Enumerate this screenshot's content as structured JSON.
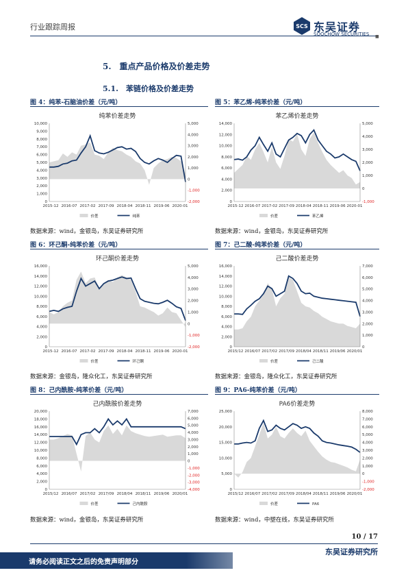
{
  "header": {
    "category": "行业跟踪周报",
    "logo_cn": "东吴证券",
    "logo_en": "SOOCHOW SECURITIES",
    "logo_mark": "SCS"
  },
  "section_title": "5.　重点产品价格及价差走势",
  "subsection_title": "5.1.　苯链价格及价差走势",
  "colors": {
    "navy": "#1a3a6b",
    "spread_fill": "#d9d9d9",
    "neg_axis": "#e02020"
  },
  "figures": [
    {
      "caption": "图 4：纯苯-石脑油价差（元/吨）",
      "source": "数据来源：wind，金银岛，东吴证券研究所",
      "chart_data": {
        "type": "area+line",
        "title": "纯苯价差走势",
        "legend": [
          "价差",
          "纯苯"
        ],
        "x_ticks": [
          "2015-12",
          "2016-07",
          "2017-02",
          "2017-09",
          "2018-04",
          "2018-11",
          "2019-06",
          "2020-01"
        ],
        "left_axis": {
          "min": 0,
          "max": 10000,
          "ticks": [
            "0",
            "1,000",
            "2,000",
            "3,000",
            "4,000",
            "5,000",
            "6,000",
            "7,000",
            "8,000",
            "9,000",
            "10,000"
          ]
        },
        "right_axis": {
          "min": -2000,
          "max": 5000,
          "ticks": [
            "-2,000",
            "-1,000",
            "0",
            "1,000",
            "2,000",
            "3,000",
            "4,000",
            "5,000"
          ]
        },
        "line": [
          4400,
          4400,
          4500,
          4800,
          4900,
          5200,
          5300,
          6200,
          7000,
          8400,
          6500,
          6200,
          6100,
          6300,
          6600,
          6900,
          7000,
          6700,
          6800,
          6400,
          5500,
          5000,
          4800,
          5200,
          5500,
          5300,
          5000,
          5500,
          5900,
          5800,
          2500
        ],
        "spread": [
          1500,
          1600,
          1700,
          2300,
          2000,
          2400,
          2200,
          3000,
          3100,
          3300,
          2200,
          2100,
          1800,
          2400,
          2800,
          2600,
          2500,
          2200,
          2000,
          1600,
          1400,
          800,
          -500,
          1000,
          1400,
          1700,
          1800,
          2000,
          1900,
          1600,
          500
        ]
      }
    },
    {
      "caption": "图 5：苯乙烯-纯苯价差（元/吨）",
      "source": "数据来源：wind，金银岛，东吴证券研究所",
      "chart_data": {
        "type": "area+line",
        "title": "苯乙烯价差走势",
        "legend": [
          "价差",
          "苯乙烯"
        ],
        "x_ticks": [
          "2015-12",
          "2016-07",
          "2017-02",
          "2017-09",
          "2018-04",
          "2018-11",
          "2019-06",
          "2020-01"
        ],
        "left_axis": {
          "min": 0,
          "max": 14000,
          "ticks": [
            "0",
            "2,000",
            "4,000",
            "6,000",
            "8,000",
            "10,000",
            "12,000",
            "14,000"
          ]
        },
        "right_axis": {
          "min": -1000,
          "max": 5000,
          "ticks": [
            "-1,000",
            "0",
            "1,000",
            "2,000",
            "3,000",
            "4,000",
            "5,000"
          ]
        },
        "line": [
          7500,
          7600,
          7400,
          8000,
          9200,
          10000,
          11500,
          10200,
          9000,
          10500,
          8500,
          8000,
          9500,
          11000,
          11500,
          12200,
          11800,
          10500,
          12000,
          12800,
          11000,
          10000,
          9000,
          8500,
          7800,
          8000,
          8500,
          8000,
          7500,
          7200,
          5500
        ],
        "spread": [
          1200,
          1500,
          1800,
          2500,
          2200,
          3000,
          3500,
          2800,
          2000,
          3200,
          2000,
          1500,
          2500,
          3800,
          3600,
          4200,
          3000,
          2500,
          3800,
          4300,
          3500,
          2800,
          2200,
          1800,
          1500,
          1200,
          1400,
          1000,
          800,
          300,
          500
        ]
      }
    },
    {
      "caption": "图 6：环己酮-纯苯价差（元/吨）",
      "source": "数据来源：金银岛，隆众化工，东吴证券研究所",
      "chart_data": {
        "type": "area+line",
        "title": "环己酮价差走势",
        "legend": [
          "价差",
          "环己酮"
        ],
        "x_ticks": [
          "2015-12",
          "2016-07",
          "2017-02",
          "2017-09",
          "2018-04",
          "2018-11",
          "2019-06",
          "2020-01"
        ],
        "left_axis": {
          "min": 0,
          "max": 16000,
          "ticks": [
            "0",
            "2,000",
            "4,000",
            "6,000",
            "8,000",
            "10,000",
            "12,000",
            "14,000",
            "16,000"
          ]
        },
        "right_axis": {
          "min": -2000,
          "max": 5000,
          "ticks": [
            "-2,000",
            "-1,000",
            "0",
            "1,000",
            "2,000",
            "3,000",
            "4,000",
            "5,000"
          ]
        },
        "line": [
          7000,
          7200,
          7000,
          7500,
          7800,
          8000,
          11000,
          13500,
          12000,
          12500,
          13000,
          11500,
          12500,
          13000,
          13200,
          13500,
          13800,
          13500,
          13600,
          11500,
          9500,
          9000,
          8800,
          8600,
          8500,
          8800,
          9200,
          8600,
          7900,
          7600,
          5200
        ],
        "spread": [
          1000,
          800,
          1000,
          1500,
          1800,
          2000,
          3800,
          4500,
          3500,
          3900,
          4000,
          3000,
          3500,
          3800,
          3600,
          4000,
          4200,
          4000,
          3800,
          2800,
          1500,
          1400,
          1200,
          1000,
          700,
          900,
          1400,
          1000,
          900,
          300,
          -300
        ]
      }
    },
    {
      "caption": "图 7：己二酸-纯苯价差（元/吨）",
      "source": "数据来源：金银岛，隆众化工，东吴证券研究所",
      "chart_data": {
        "type": "area+line",
        "title": "己二酸价差走势",
        "legend": [
          "价差",
          "己二酸"
        ],
        "x_ticks": [
          "2015/12",
          "2016/07",
          "2017/02",
          "2017/09",
          "2018/04",
          "2018/11",
          "2019/06",
          "2020/01"
        ],
        "left_axis": {
          "min": 0,
          "max": 16000,
          "ticks": [
            "0",
            "2,000",
            "4,000",
            "6,000",
            "8,000",
            "10,000",
            "12,000",
            "14,000",
            "16,000"
          ]
        },
        "right_axis": {
          "min": 0,
          "max": 7000,
          "ticks": [
            "0",
            "1,000",
            "2,000",
            "3,000",
            "4,000",
            "5,000",
            "6,000",
            "7,000"
          ]
        },
        "line": [
          6500,
          6500,
          6400,
          7500,
          8200,
          9000,
          9500,
          10500,
          12000,
          11500,
          10000,
          10500,
          11000,
          14000,
          13500,
          12500,
          11000,
          10500,
          10600,
          10000,
          9800,
          9600,
          9500,
          9400,
          9300,
          9200,
          9100,
          9000,
          8900,
          8800,
          6000
        ],
        "spread": [
          1500,
          1500,
          1600,
          2200,
          2600,
          3500,
          4000,
          4500,
          5500,
          5000,
          3500,
          4200,
          4600,
          6000,
          5800,
          4800,
          3800,
          3500,
          3400,
          3100,
          2900,
          2600,
          2400,
          2200,
          2100,
          2000,
          2000,
          1800,
          1700,
          1600,
          2000
        ]
      }
    },
    {
      "caption": "图 8：己内酰胺-纯苯价差（元/吨）",
      "source": "数据来源：wind，金银岛，东吴证券研究所",
      "chart_data": {
        "type": "area+line",
        "title": "己内酰胺价差走势",
        "legend": [
          "价差",
          "己内酰胺"
        ],
        "x_ticks": [
          "2015/12",
          "2016/07",
          "2017/02",
          "2017/09",
          "2018/04",
          "2018/11",
          "2019/06",
          "2020/01"
        ],
        "left_axis": {
          "min": 0,
          "max": 20000,
          "ticks": [
            "0",
            "2,000",
            "4,000",
            "6,000",
            "8,000",
            "10,000",
            "12,000",
            "14,000",
            "16,000",
            "18,000",
            "20,000"
          ]
        },
        "right_axis": {
          "min": -4000,
          "max": 7000,
          "ticks": [
            "-4,000",
            "-3,000",
            "-2,000",
            "-1,000",
            "0",
            "1,000",
            "2,000",
            "3,000",
            "4,000",
            "5,000",
            "6,000",
            "7,000"
          ]
        },
        "line": [
          13500,
          13500,
          13500,
          13500,
          13500,
          13500,
          11500,
          14000,
          14500,
          14500,
          15500,
          14500,
          16000,
          18000,
          16500,
          17500,
          16500,
          18000,
          16000,
          16000,
          16000,
          16000,
          16000,
          16000,
          16000,
          16000,
          16000,
          16000,
          16000,
          16000,
          15500
        ],
        "spread": [
          3000,
          3000,
          3200,
          3500,
          3800,
          3600,
          1000,
          -1500,
          3500,
          4000,
          3000,
          2600,
          4200,
          5000,
          3800,
          4500,
          3600,
          5000,
          4200,
          3900,
          3700,
          3500,
          3400,
          3500,
          3600,
          3700,
          3400,
          3500,
          3600,
          3600,
          3200
        ]
      }
    },
    {
      "caption": "图 9：PA6-纯苯价差（元/吨）",
      "source": "数据来源：wind，中塑在线，东吴证券研究所",
      "chart_data": {
        "type": "area+line",
        "title": "PA6价差走势",
        "legend": [
          "价差",
          "PA6"
        ],
        "x_ticks": [
          "2015/12",
          "2016/07",
          "2017/02",
          "2017/09",
          "2018/04",
          "2018/11",
          "2019/06",
          "2020/01"
        ],
        "left_axis": {
          "min": 0,
          "max": 25000,
          "ticks": [
            "0",
            "5,000",
            "10,000",
            "15,000",
            "20,000",
            "25,000"
          ]
        },
        "right_axis": {
          "min": -2000,
          "max": 8000,
          "ticks": [
            "-2,000",
            "-1,000",
            "0",
            "1,000",
            "2,000",
            "3,000",
            "4,000",
            "5,000",
            "6,000",
            "7,000",
            "8,000"
          ]
        },
        "line": [
          14500,
          14500,
          14800,
          15000,
          14800,
          15500,
          19500,
          22000,
          18500,
          19000,
          20500,
          19500,
          19000,
          20000,
          21000,
          20500,
          19500,
          20000,
          19500,
          18000,
          17000,
          15500,
          15000,
          14800,
          14500,
          14200,
          14000,
          13800,
          13500,
          12800,
          11800
        ],
        "spread": [
          0,
          -500,
          200,
          1500,
          2000,
          3500,
          5000,
          6500,
          4500,
          5000,
          6000,
          4800,
          4500,
          5200,
          5800,
          5200,
          4800,
          5500,
          4200,
          3500,
          2800,
          2200,
          1800,
          1500,
          1400,
          1200,
          1000,
          800,
          500,
          300,
          1800
        ]
      }
    }
  ],
  "footer": {
    "page": "10 / 17",
    "org": "东吴证券研究所",
    "notice": "请务必阅读正文之后的免责声明部分"
  }
}
